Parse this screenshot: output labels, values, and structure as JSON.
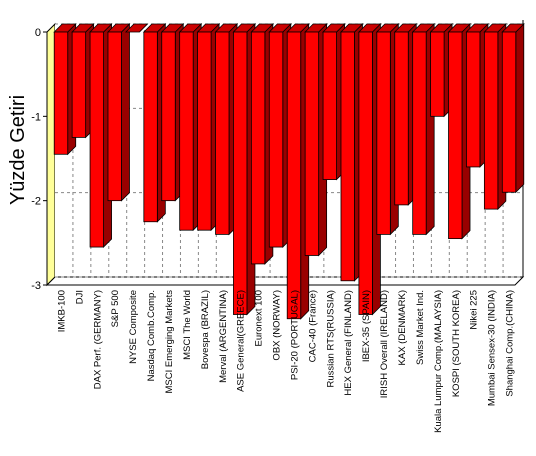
{
  "chart_data": {
    "type": "bar",
    "ylabel": "Yüzde Getiri",
    "xlabel": "",
    "title": "",
    "ylim": [
      -3,
      0
    ],
    "yticks": [
      "0",
      "-1",
      "-2",
      "-3"
    ],
    "grid": true,
    "style": "3d",
    "colors": {
      "bar_front": "#ff0000",
      "bar_side": "#990000",
      "bar_top": "#cc0000",
      "wall": "#ffff99",
      "gridline": "#888888"
    },
    "categories": [
      "IMKB-100",
      "DJI",
      "DAX Perf. (GERMANY)",
      "S&P 500",
      "NYSE Composite",
      "Nasdaq Comb.Comp.",
      "MSCI Emerging Markets",
      "MSCI The World",
      "Bovespa (BRAZIL)",
      "Merval (ARGENTINA)",
      "ASE General(GREECE)",
      "Euronext 100",
      "OBX (NORWAY)",
      "PSI-20 (PORTUGAL)",
      "CAC-40 (France)",
      "Russian RTS(RUSSIA)",
      "HEX General (FINLAND)",
      "IBEX-35 (SPAIN)",
      "IRISH Overall (IRELAND)",
      "KAX (DENMARK)",
      "Swiss Market Ind.",
      "Kuala Lumpur Comp.(MALAYSIA)",
      "KOSPI (SOUTH KOREA)",
      "Nikei 225",
      "Mumbai Sensex-30 (INDIA)",
      "Shanghai Comp.(CHINA)"
    ],
    "values": [
      -1.45,
      -1.25,
      -2.55,
      -2.0,
      0.0,
      -2.25,
      -2.0,
      -2.35,
      -2.35,
      -2.4,
      -3.35,
      -2.75,
      -2.55,
      -3.4,
      -2.65,
      -1.75,
      -2.95,
      -3.35,
      -2.4,
      -2.05,
      -2.4,
      -1.0,
      -2.45,
      -1.6,
      -2.1,
      -1.9
    ]
  }
}
